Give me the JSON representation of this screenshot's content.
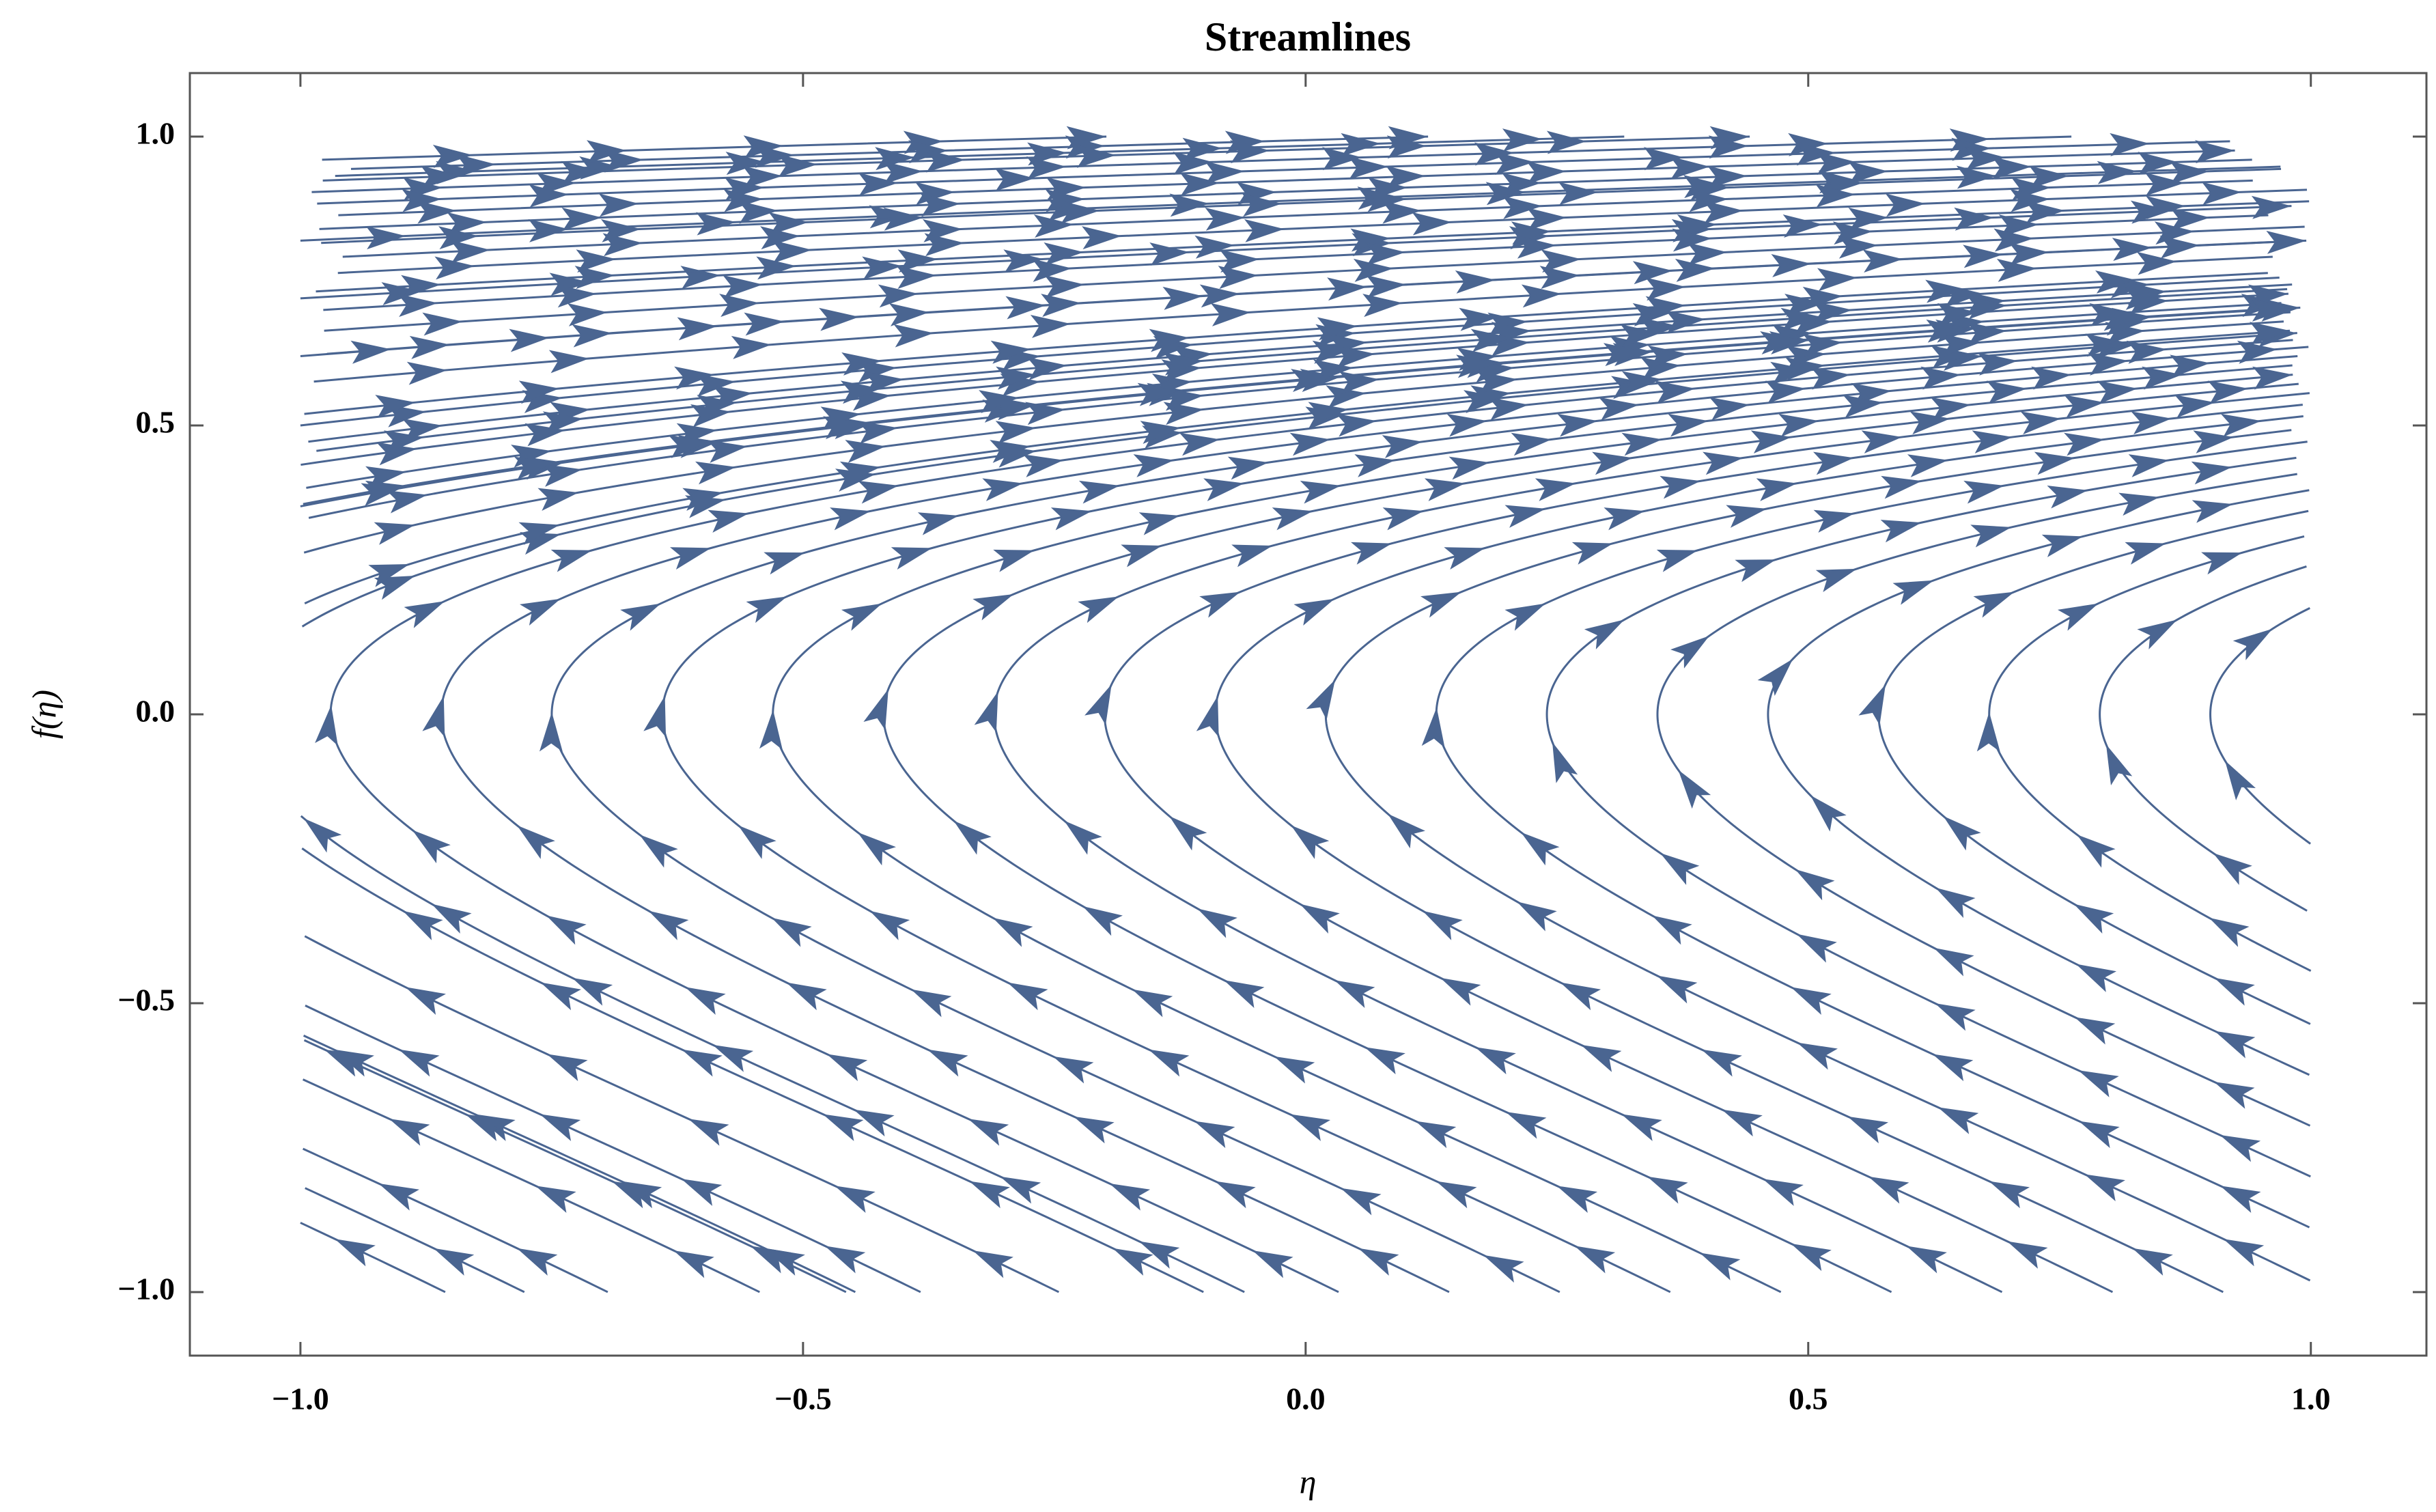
{
  "chart_data": {
    "type": "streamline",
    "title": "Streamlines",
    "x_label": "η",
    "y_label": "f(η)",
    "color": "#4a6591",
    "xlim": [
      -1.11,
      1.115
    ],
    "ylim": [
      -1.11,
      1.11
    ],
    "xticks": [
      {
        "value": -1,
        "label": "−1.0"
      },
      {
        "value": -0.5,
        "label": "−0.5"
      },
      {
        "value": 0,
        "label": "0.0"
      },
      0.5,
      {
        "value": 1,
        "label": "1.0"
      }
    ],
    "yticks": [
      {
        "value": -1,
        "label": "−1.0"
      },
      {
        "value": -0.5,
        "label": "−0.5"
      },
      {
        "value": 0,
        "label": "0.0"
      },
      0.5,
      {
        "value": 1,
        "label": "1.0"
      }
    ]
  }
}
